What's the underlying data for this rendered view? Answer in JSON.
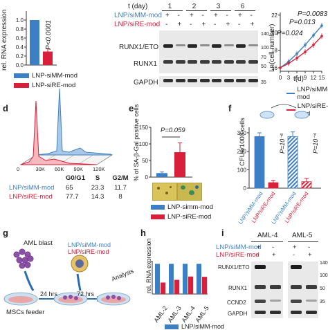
{
  "colors": {
    "blue": "#3d7fc4",
    "red": "#d8203a",
    "blot_bg": "#e9e9e9",
    "band": "#1c1c1c",
    "tissue_yellow": "#d8c45a"
  },
  "panel_letters": {
    "d": "d",
    "e": "e",
    "f": "f",
    "g": "g",
    "h": "h",
    "i": "i"
  },
  "legend": {
    "simm": "LNP-siMM-mod",
    "sire": "LNP-siRE-mod",
    "simm_slash": "LNP/siMM-mod",
    "sire_slash": "LNP/siRE-mod"
  },
  "panel_a": {
    "ylabel": "rel. RNA expression",
    "pvalue": "P<0.0001",
    "chart_data": {
      "type": "bar",
      "categories": [
        "LNP-siMM-mod",
        "LNP-siRE-mod"
      ],
      "values": [
        1.0,
        0.3
      ],
      "ylim": [
        0,
        1.2
      ],
      "yticks": [
        "0.0",
        "0.2",
        "0.4",
        "0.6",
        "0.8",
        "1.0"
      ],
      "ylabel": "rel. RNA expression"
    }
  },
  "panel_b": {
    "time_label": "t (day)",
    "days": [
      "1",
      "2",
      "3",
      "6"
    ],
    "simm_row": "LNP/siMM-mod",
    "sire_row": "LNP/siRE-mod",
    "signs_simm": [
      "+",
      "-",
      "+",
      "-",
      "+",
      "-",
      "+",
      "-"
    ],
    "signs_sire": [
      "-",
      "+",
      "-",
      "+",
      "-",
      "+",
      "-",
      "+"
    ],
    "proteins": [
      "RUNX1/ETO",
      "RUNX1",
      "GAPDH"
    ],
    "mw": [
      "140",
      "100",
      "70",
      "50",
      "35"
    ]
  },
  "panel_c": {
    "ylabel": "Ln(cell number)",
    "xlabel": "t(d)",
    "pvalues": [
      "P=0.0083",
      "P=0.013",
      "P=0.024"
    ],
    "chart_data": {
      "type": "line",
      "x": [
        0,
        3,
        6,
        9,
        12,
        15
      ],
      "series": [
        {
          "name": "LNP/siMM-mod",
          "values": [
            16.0,
            16.7,
            17.6,
            18.6,
            19.7,
            20.8
          ]
        },
        {
          "name": "LNP/siRE-mod",
          "values": [
            16.0,
            16.5,
            17.1,
            17.8,
            18.6,
            19.6
          ]
        }
      ],
      "xticks": [
        "0",
        "3",
        "6",
        "9",
        "12",
        "15"
      ],
      "yticks": [
        "16",
        "18",
        "20",
        "22"
      ],
      "xlim": [
        0,
        15
      ],
      "ylim": [
        15.6,
        22.3
      ],
      "xlabel": "t(d)",
      "ylabel": "Ln(cell number)"
    }
  },
  "panel_d": {
    "xticks": [
      "0",
      "30K",
      "60K",
      "90K",
      "120K"
    ],
    "header": [
      "G0/G1",
      "S",
      "G2/M"
    ],
    "rows": [
      {
        "name": "LNP/siMM-mod",
        "values": [
          "65",
          "23.3",
          "11.7"
        ]
      },
      {
        "name": "LNP/siRE-mod",
        "values": [
          "77.7",
          "14.3",
          "8"
        ]
      }
    ]
  },
  "panel_e": {
    "ylabel": "% of SA-β-Gal positive cells",
    "pvalue": "P=0.059",
    "chart_data": {
      "type": "bar",
      "categories": [
        "LNP-simm-mod",
        "LNP-siRE-mod"
      ],
      "values": [
        12,
        75
      ],
      "errors": [
        4,
        28
      ],
      "yticks": [
        "0",
        "50",
        "100",
        "150"
      ],
      "ylim": [
        0,
        150
      ]
    },
    "legend": [
      "LNP-simm-mod",
      "LNP-siRE-mod"
    ]
  },
  "panel_f": {
    "ylabel": "CFUs/1000 cells",
    "p1": "P=10⁻⁶",
    "p2": "P=10⁻⁴",
    "chart_data": {
      "type": "bar",
      "categories": [
        "LNP/siMM-mod",
        "LNP/siRE-mod",
        "LNP/siMM-mod",
        "LNP/siRE-mod"
      ],
      "values": [
        280,
        30,
        280,
        35
      ],
      "errors": [
        20,
        12,
        25,
        18
      ],
      "yticks": [
        "0",
        "100",
        "200",
        "300"
      ],
      "ylim": [
        0,
        330
      ]
    }
  },
  "panel_g": {
    "aml_blast": "AML blast",
    "lnp1": "LNP/siMM-mod",
    "lnp2": "LNP/siRE-mod",
    "t24": "24 hrs",
    "t72": "72 hrs",
    "analysis": "Analysis",
    "feeder": "MSCs feeder"
  },
  "panel_h": {
    "ylabel": "rel. RNA expression",
    "legend_partial": "LNP/siMM-mod",
    "chart_data": {
      "type": "bar",
      "categories": [
        "AML-2",
        "AML-3",
        "AML-4",
        "AML-5"
      ],
      "series": [
        {
          "name": "LNP/siMM-mod",
          "values": [
            1.0,
            1.0,
            1.0,
            1.0
          ]
        },
        {
          "name": "LNP/siRE-mod",
          "values": [
            0.38,
            0.47,
            0.58,
            0.57
          ]
        }
      ],
      "ylim": [
        0,
        1.1
      ]
    }
  },
  "panel_i": {
    "samples": [
      "AML-4",
      "AML-5"
    ],
    "simm_row": "LNP/siMM-mod",
    "sire_row": "LNP/siRE-mod",
    "signs_simm": [
      "+",
      "-",
      "+",
      "-"
    ],
    "signs_sire": [
      "-",
      "+",
      "-",
      "+"
    ],
    "proteins": [
      "RUNX1/ETO",
      "RUNX1",
      "CCND2",
      "GAPDH"
    ],
    "mw": [
      "140",
      "100",
      "50",
      "35"
    ]
  }
}
